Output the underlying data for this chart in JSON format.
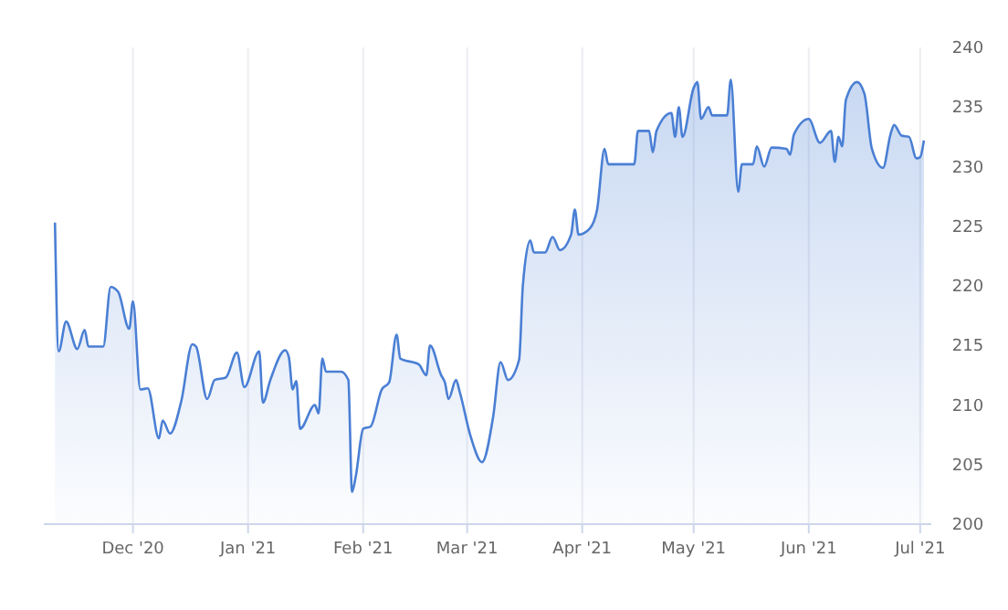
{
  "chart_data": {
    "type": "area",
    "color": "#4a7fd4",
    "grid": "x",
    "xlim": [
      "2020-11-07",
      "2021-07-04"
    ],
    "ylim": [
      200,
      240
    ],
    "yticks": [
      200,
      205,
      210,
      215,
      220,
      225,
      230,
      235,
      240
    ],
    "xticks": [
      {
        "value": "2020-12-01",
        "label": "Dec '20"
      },
      {
        "value": "2021-01-01",
        "label": "Jan '21"
      },
      {
        "value": "2021-02-01",
        "label": "Feb '21"
      },
      {
        "value": "2021-03-01",
        "label": "Mar '21"
      },
      {
        "value": "2021-04-01",
        "label": "Apr '21"
      },
      {
        "value": "2021-05-01",
        "label": "May '21"
      },
      {
        "value": "2021-06-01",
        "label": "Jun '21"
      },
      {
        "value": "2021-07-01",
        "label": "Jul '21"
      }
    ],
    "x": [
      "2020-11-10",
      "2020-11-11",
      "2020-11-13",
      "2020-11-16",
      "2020-11-18",
      "2020-11-19",
      "2020-11-23",
      "2020-11-25",
      "2020-11-27",
      "2020-11-30",
      "2020-12-01",
      "2020-12-03",
      "2020-12-05",
      "2020-12-08",
      "2020-12-09",
      "2020-12-11",
      "2020-12-14",
      "2020-12-17",
      "2020-12-18",
      "2020-12-21",
      "2020-12-23",
      "2020-12-26",
      "2020-12-29",
      "2020-12-31",
      "2021-01-04",
      "2021-01-05",
      "2021-01-07",
      "2021-01-11",
      "2021-01-12",
      "2021-01-13",
      "2021-01-14",
      "2021-01-15",
      "2021-01-19",
      "2021-01-20",
      "2021-01-21",
      "2021-01-22",
      "2021-01-26",
      "2021-01-28",
      "2021-01-29",
      "2021-01-30",
      "2021-02-01",
      "2021-02-03",
      "2021-02-06",
      "2021-02-08",
      "2021-02-10",
      "2021-02-11",
      "2021-02-16",
      "2021-02-18",
      "2021-02-19",
      "2021-02-22",
      "2021-02-23",
      "2021-02-24",
      "2021-02-26",
      "2021-02-27",
      "2021-03-02",
      "2021-03-05",
      "2021-03-08",
      "2021-03-10",
      "2021-03-12",
      "2021-03-15",
      "2021-03-16",
      "2021-03-18",
      "2021-03-19",
      "2021-03-22",
      "2021-03-24",
      "2021-03-26",
      "2021-03-29",
      "2021-03-30",
      "2021-03-31",
      "2021-04-03",
      "2021-04-05",
      "2021-04-07",
      "2021-04-08",
      "2021-04-15",
      "2021-04-16",
      "2021-04-19",
      "2021-04-20",
      "2021-04-21",
      "2021-04-25",
      "2021-04-26",
      "2021-04-27",
      "2021-04-28",
      "2021-05-01",
      "2021-05-02",
      "2021-05-03",
      "2021-05-05",
      "2021-05-06",
      "2021-05-10",
      "2021-05-11",
      "2021-05-13",
      "2021-05-14",
      "2021-05-17",
      "2021-05-18",
      "2021-05-20",
      "2021-05-22",
      "2021-05-26",
      "2021-05-27",
      "2021-05-28",
      "2021-06-01",
      "2021-06-04",
      "2021-06-07",
      "2021-06-08",
      "2021-06-09",
      "2021-06-10",
      "2021-06-11",
      "2021-06-14",
      "2021-06-16",
      "2021-06-18",
      "2021-06-21",
      "2021-06-23",
      "2021-06-24",
      "2021-06-26",
      "2021-06-28",
      "2021-06-30",
      "2021-07-01",
      "2021-07-02"
    ],
    "values": [
      225.3,
      214.5,
      217.0,
      214.7,
      216.3,
      214.9,
      214.9,
      219.9,
      219.5,
      216.4,
      218.7,
      211.3,
      211.4,
      207.2,
      208.7,
      207.6,
      210.3,
      215.1,
      214.9,
      210.5,
      212.1,
      212.3,
      214.4,
      211.5,
      214.5,
      210.2,
      212.1,
      214.6,
      214.0,
      211.3,
      212.0,
      208.0,
      210.0,
      209.3,
      213.9,
      212.8,
      212.8,
      212.1,
      202.7,
      204.0,
      208.0,
      208.2,
      211.3,
      211.9,
      215.9,
      213.9,
      213.4,
      212.5,
      215.0,
      212.5,
      211.9,
      210.5,
      212.1,
      211.1,
      207.3,
      205.2,
      209.0,
      213.6,
      212.1,
      213.8,
      220.0,
      223.8,
      222.8,
      222.8,
      224.1,
      223.0,
      224.3,
      226.4,
      224.3,
      224.8,
      226.4,
      231.5,
      230.2,
      230.2,
      233.0,
      233.0,
      231.2,
      233.0,
      234.5,
      232.5,
      235.0,
      232.5,
      236.6,
      237.1,
      234.0,
      235.0,
      234.3,
      234.3,
      237.3,
      227.9,
      230.2,
      230.2,
      231.7,
      230.0,
      231.6,
      231.5,
      231.0,
      232.7,
      234.0,
      232.0,
      233.0,
      230.4,
      232.5,
      231.7,
      235.6,
      237.1,
      236.1,
      231.5,
      229.9,
      232.7,
      233.5,
      232.6,
      232.5,
      230.7,
      230.8,
      232.2
    ]
  }
}
